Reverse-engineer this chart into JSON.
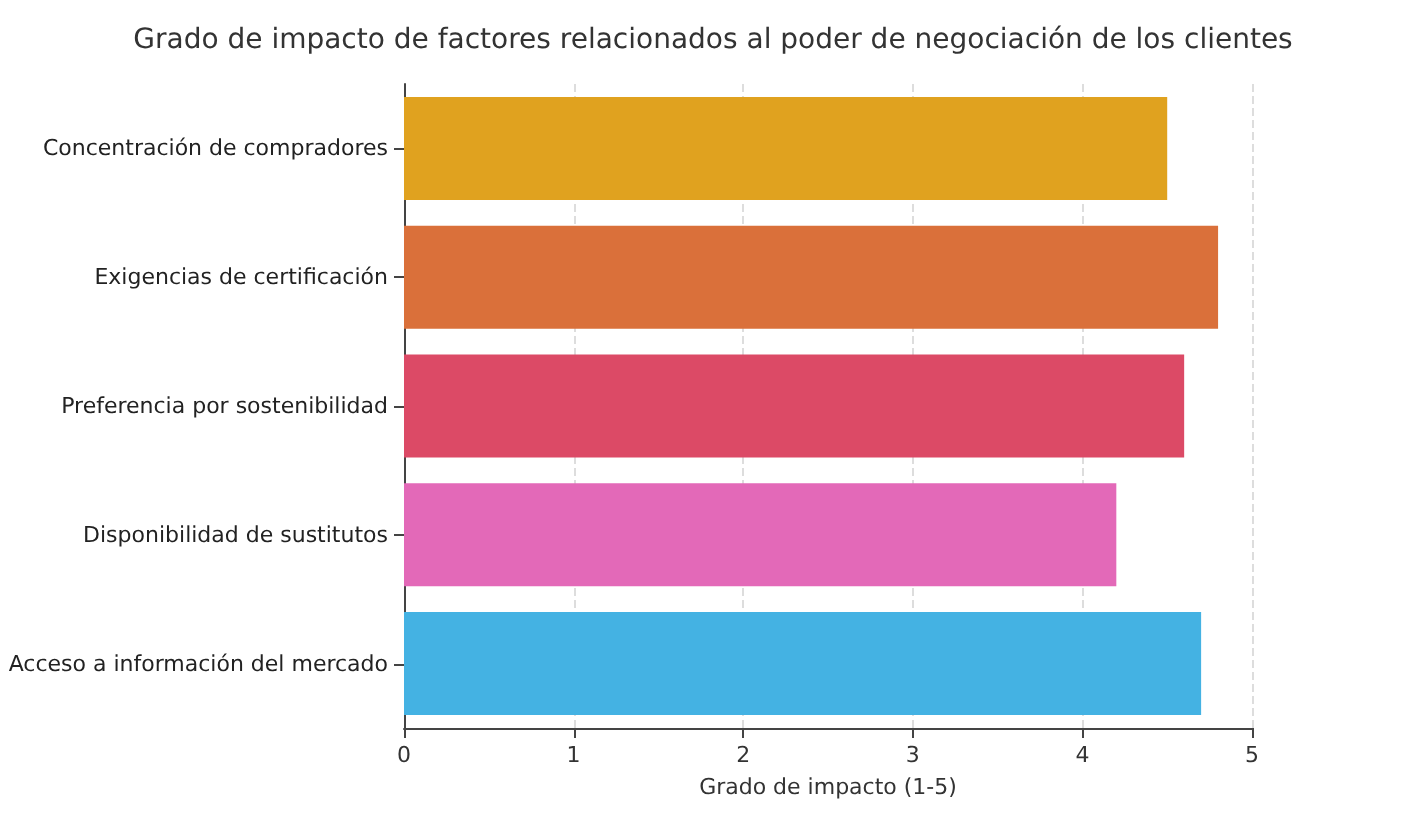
{
  "chart_data": {
    "type": "bar",
    "orientation": "horizontal",
    "title": "Grado de impacto de factores relacionados al poder de negociación de los clientes",
    "xlabel": "Grado de impacto (1-5)",
    "categories": [
      "Concentración de compradores",
      "Exigencias de certificación",
      "Preferencia por sostenibilidad",
      "Disponibilidad de sustitutos",
      "Acceso a información del mercado"
    ],
    "values": [
      4.5,
      4.8,
      4.6,
      4.2,
      4.7
    ],
    "colors": [
      "#e0a21f",
      "#da703a",
      "#dc4a66",
      "#e369b8",
      "#44b2e3"
    ],
    "xlim": [
      0,
      5
    ],
    "xticks": [
      0,
      1,
      2,
      3,
      4,
      5
    ],
    "grid": "x"
  }
}
